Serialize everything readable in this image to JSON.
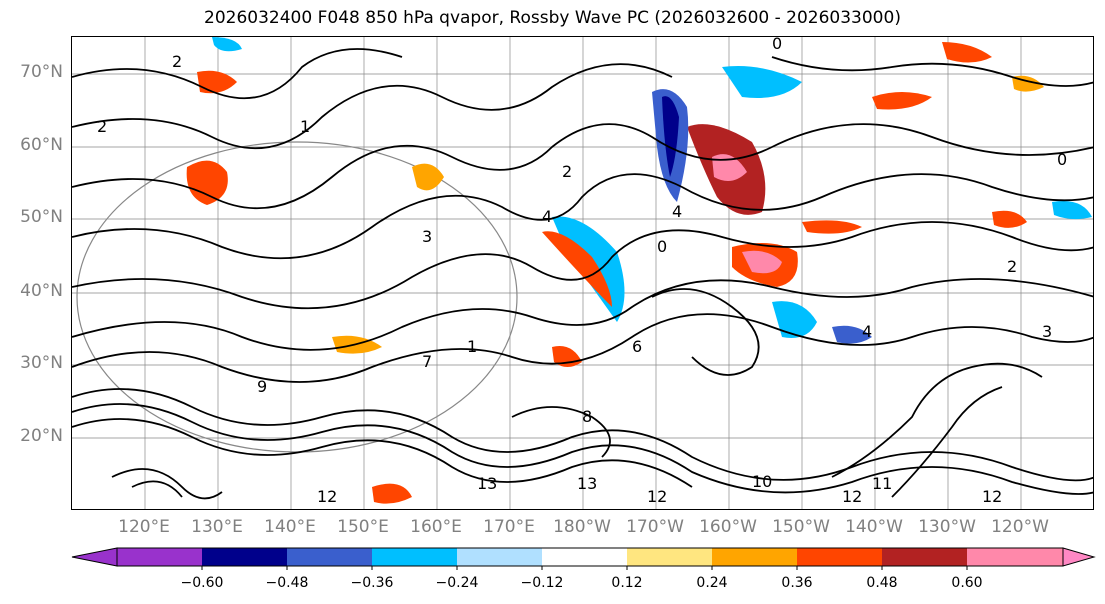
{
  "title": "2026032400 F048 850 hPa qvapor, Rossby Wave PC (2026032600 - 2026033000)",
  "map": {
    "projection": "PlateCarree",
    "lon_range": [
      110,
      250
    ],
    "lat_range": [
      10,
      75
    ],
    "latitude_labels": [
      "70°N",
      "60°N",
      "50°N",
      "40°N",
      "30°N",
      "20°N"
    ],
    "longitude_labels": [
      "120°E",
      "130°E",
      "140°E",
      "150°E",
      "160°E",
      "170°E",
      "180°W",
      "170°W",
      "160°W",
      "150°W",
      "140°W",
      "130°W",
      "120°W"
    ],
    "contour_labels": [
      "2",
      "1",
      "2",
      "0",
      "2",
      "4",
      "3",
      "4",
      "1",
      "9",
      "7",
      "13",
      "13",
      "12",
      "12",
      "11",
      "12",
      "12",
      "10",
      "8",
      "6",
      "4",
      "2",
      "3",
      "0",
      "0"
    ]
  },
  "colorbar": {
    "tick_labels": [
      "−0.60",
      "−0.48",
      "−0.36",
      "−0.24",
      "−0.12",
      "0.12",
      "0.24",
      "0.36",
      "0.48",
      "0.60"
    ],
    "colors": [
      "#9932cc",
      "#00008b",
      "#3a5fcd",
      "#00bfff",
      "#b0e0ff",
      "#ffffff",
      "#ffe680",
      "#ffa500",
      "#ff4500",
      "#b22222",
      "#ff88aa",
      "#ff88c4"
    ]
  }
}
